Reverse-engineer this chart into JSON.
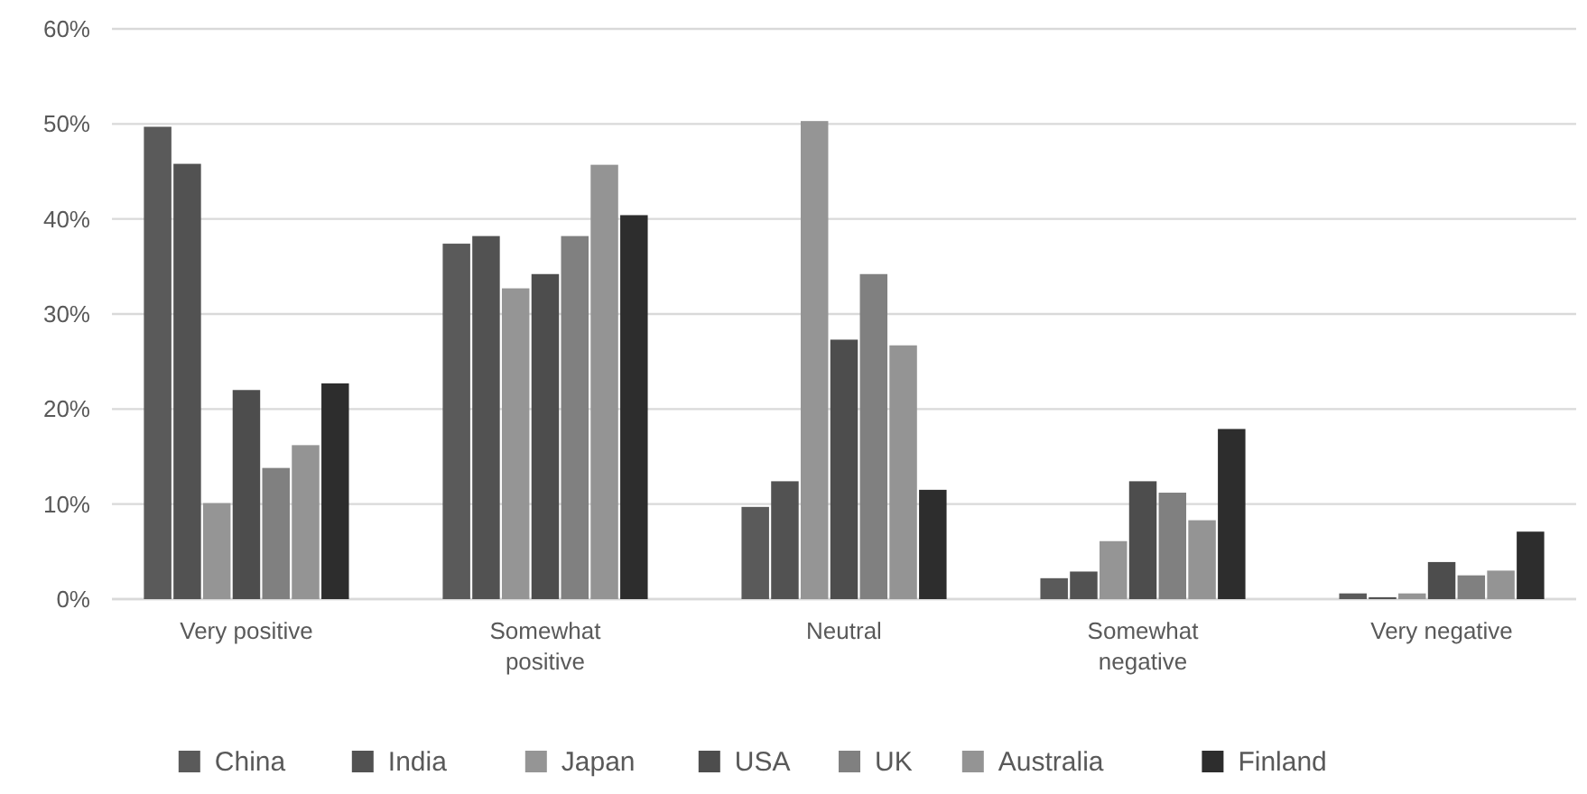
{
  "chart_data": {
    "type": "bar",
    "categories": [
      "Very positive",
      "Somewhat positive",
      "Neutral",
      "Somewhat negative",
      "Very negative"
    ],
    "series": [
      {
        "name": "China",
        "color": "#5a5a5a",
        "values": [
          49.7,
          37.4,
          9.7,
          2.2,
          0.6
        ]
      },
      {
        "name": "India",
        "color": "#525252",
        "values": [
          45.8,
          38.2,
          12.4,
          2.9,
          0.2
        ]
      },
      {
        "name": "Japan",
        "color": "#959595",
        "values": [
          10.1,
          32.7,
          50.3,
          6.1,
          0.6
        ]
      },
      {
        "name": "USA",
        "color": "#4d4d4d",
        "values": [
          22,
          34.2,
          27.3,
          12.4,
          3.9
        ]
      },
      {
        "name": "UK",
        "color": "#808080",
        "values": [
          13.8,
          38.2,
          34.2,
          11.2,
          2.5
        ]
      },
      {
        "name": "Australia",
        "color": "#949494",
        "values": [
          16.2,
          45.7,
          26.7,
          8.3,
          3.0
        ]
      },
      {
        "name": "Finland",
        "color": "#2d2d2d",
        "values": [
          22.7,
          40.4,
          11.5,
          17.9,
          7.1
        ]
      }
    ],
    "ylim": [
      0,
      60
    ],
    "yticks": [
      {
        "value": 0,
        "label": "0%"
      },
      {
        "value": 10,
        "label": "10%"
      },
      {
        "value": 20,
        "label": "20%"
      },
      {
        "value": 30,
        "label": "30%"
      },
      {
        "value": 40,
        "label": "40%"
      },
      {
        "value": 50,
        "label": "50%"
      },
      {
        "value": 60,
        "label": "60%"
      }
    ],
    "grid": "y",
    "legend": "bottom"
  }
}
